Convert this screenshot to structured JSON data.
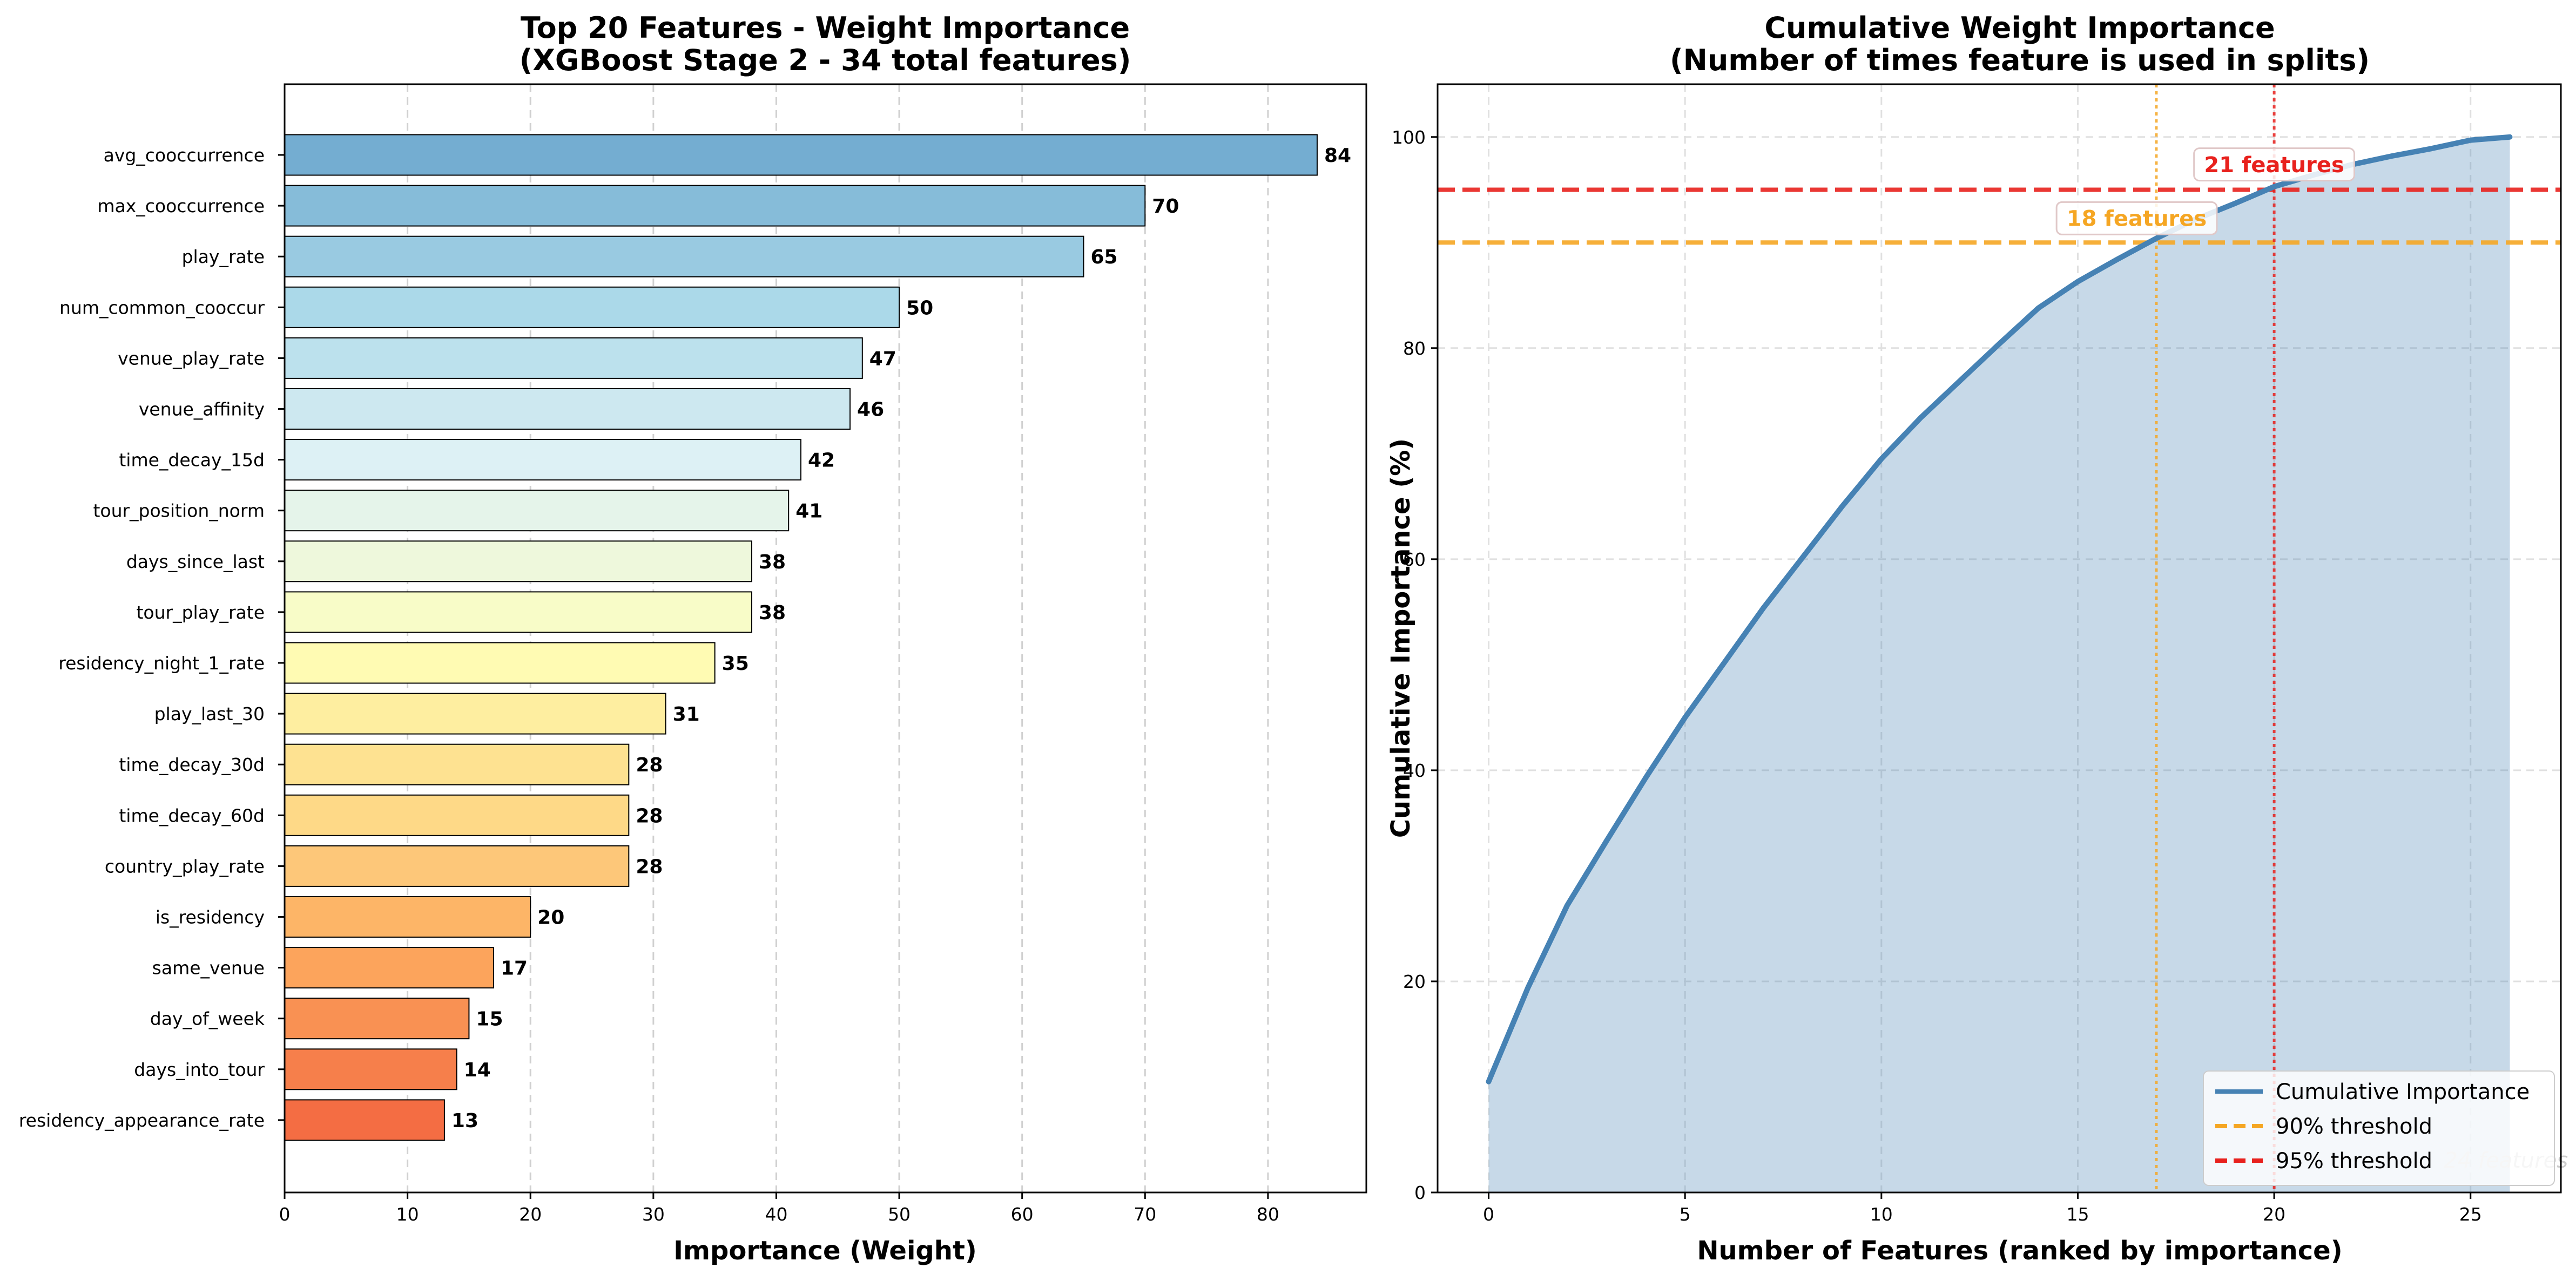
{
  "chart_data": [
    {
      "type": "bar",
      "orientation": "horizontal",
      "title": "Top 20 Features - Weight Importance\n(XGBoost Stage 2 - 34 total features)",
      "xlabel": "Importance (Weight)",
      "ylabel": "",
      "xlim": [
        0,
        88
      ],
      "xticks": [
        0,
        10,
        20,
        30,
        40,
        50,
        60,
        70,
        80
      ],
      "grid": "vertical dashed",
      "categories": [
        "avg_cooccurrence",
        "max_cooccurrence",
        "play_rate",
        "num_common_cooccur",
        "venue_play_rate",
        "venue_affinity",
        "time_decay_15d",
        "tour_position_norm",
        "days_since_last",
        "tour_play_rate",
        "residency_night_1_rate",
        "play_last_30",
        "time_decay_30d",
        "time_decay_60d",
        "country_play_rate",
        "is_residency",
        "same_venue",
        "day_of_week",
        "days_into_tour",
        "residency_appearance_rate"
      ],
      "values": [
        84,
        70,
        65,
        50,
        47,
        46,
        42,
        41,
        38,
        38,
        35,
        31,
        28,
        28,
        28,
        20,
        17,
        15,
        14,
        13
      ],
      "colors": [
        "#74add1",
        "#86bcd9",
        "#99cae1",
        "#abd9e9",
        "#bce1ed",
        "#cde8f0",
        "#ddf1f5",
        "#e5f4ea",
        "#eef8dc",
        "#f8fcc8",
        "#fffbb3",
        "#feeea0",
        "#fee291",
        "#fed987",
        "#fdc779",
        "#fdb567",
        "#fca45c",
        "#f99153",
        "#f67f4b",
        "#f46d43"
      ]
    },
    {
      "type": "area",
      "title": "Cumulative Weight Importance\n(Number of times feature is used in splits)",
      "xlabel": "Number of Features (ranked by importance)",
      "ylabel": "Cumulative Importance (%)",
      "xlim": [
        -1.3,
        27.3
      ],
      "ylim": [
        0,
        105
      ],
      "xticks": [
        0,
        5,
        10,
        15,
        20,
        25
      ],
      "yticks": [
        0,
        20,
        40,
        60,
        80,
        100
      ],
      "grid": "both dashed",
      "legend_position": "lower right",
      "series": [
        {
          "name": "Cumulative Importance",
          "color": "#4682b4",
          "x": [
            0,
            1,
            2,
            3,
            4,
            5,
            6,
            7,
            8,
            9,
            10,
            11,
            12,
            13,
            14,
            15,
            16,
            17,
            18,
            19,
            20,
            21,
            22,
            23,
            24,
            25,
            26
          ],
          "y": [
            10.5,
            19.4,
            27.2,
            33.3,
            39.3,
            45.0,
            50.2,
            55.4,
            60.2,
            65.0,
            69.5,
            73.4,
            76.9,
            80.4,
            83.8,
            86.3,
            88.4,
            90.4,
            92.2,
            93.7,
            95.3,
            96.4,
            97.4,
            98.2,
            98.9,
            99.7,
            100.0
          ]
        },
        {
          "name": "90% threshold",
          "y": 90,
          "style": "dashed",
          "color": "#f5a623"
        },
        {
          "name": "95% threshold",
          "y": 95,
          "style": "dashed",
          "color": "#e8211d"
        }
      ],
      "vlines": [
        {
          "x": 17,
          "color": "#f5a623",
          "style": "dotted"
        },
        {
          "x": 20,
          "color": "#e8211d",
          "style": "dotted"
        }
      ],
      "annotations": [
        {
          "text": "18 features",
          "x": 16.5,
          "y": 92.3,
          "color": "#f5a623"
        },
        {
          "text": "21 features",
          "x": 20.0,
          "y": 97.4,
          "color": "#e8211d"
        },
        {
          "text": "24 features",
          "x": 25.9,
          "y": 3.1,
          "color": "#cccccc",
          "style": "italic"
        }
      ]
    }
  ]
}
